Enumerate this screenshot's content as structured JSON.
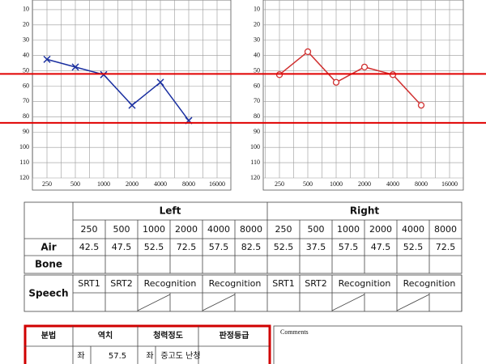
{
  "chart_data": [
    {
      "type": "line",
      "categories": [
        250,
        500,
        1000,
        2000,
        4000,
        8000,
        16000
      ],
      "series": [
        {
          "color": "#1a2fa0",
          "marker": "x",
          "values": [
            42.5,
            47.5,
            52.5,
            72.5,
            57.5,
            82.5,
            null
          ]
        }
      ],
      "ylim": [
        0,
        120
      ],
      "yticks": [
        10,
        20,
        30,
        40,
        50,
        60,
        70,
        80,
        90,
        100,
        110,
        120
      ],
      "inverted": true,
      "grid": true
    },
    {
      "type": "line",
      "categories": [
        250,
        500,
        1000,
        2000,
        4000,
        8000,
        16000
      ],
      "series": [
        {
          "color": "#d03030",
          "marker": "o",
          "values": [
            52.5,
            37.5,
            57.5,
            47.5,
            52.5,
            72.5,
            null
          ]
        }
      ],
      "ylim": [
        0,
        120
      ],
      "yticks": [
        10,
        20,
        30,
        40,
        50,
        60,
        70,
        80,
        90,
        100,
        110,
        120
      ],
      "inverted": true,
      "grid": true
    }
  ],
  "reference_lines": {
    "color": "#e00000",
    "values": [
      52,
      84
    ]
  },
  "table": {
    "headers": [
      "Left",
      "Right"
    ],
    "frequencies": [
      250,
      500,
      1000,
      2000,
      4000,
      8000,
      250,
      500,
      1000,
      2000,
      4000,
      8000
    ],
    "rows": [
      {
        "label": "Air",
        "cells": [
          42.5,
          47.5,
          52.5,
          72.5,
          57.5,
          82.5,
          52.5,
          37.5,
          57.5,
          47.5,
          52.5,
          72.5
        ]
      },
      {
        "label": "Bone"
      }
    ],
    "speech": {
      "label": "Speech",
      "cells": [
        "SRT1",
        "SRT2",
        "Recognition",
        "Recognition",
        "SRT1",
        "SRT2",
        "Recognition",
        "Recognition"
      ]
    }
  },
  "summary": {
    "headers": [
      "분법",
      "역치",
      "청력정도",
      "판정등급"
    ],
    "row": [
      "좌",
      "57.5",
      "좌",
      "중고도 난청"
    ]
  },
  "comments": "Comments"
}
